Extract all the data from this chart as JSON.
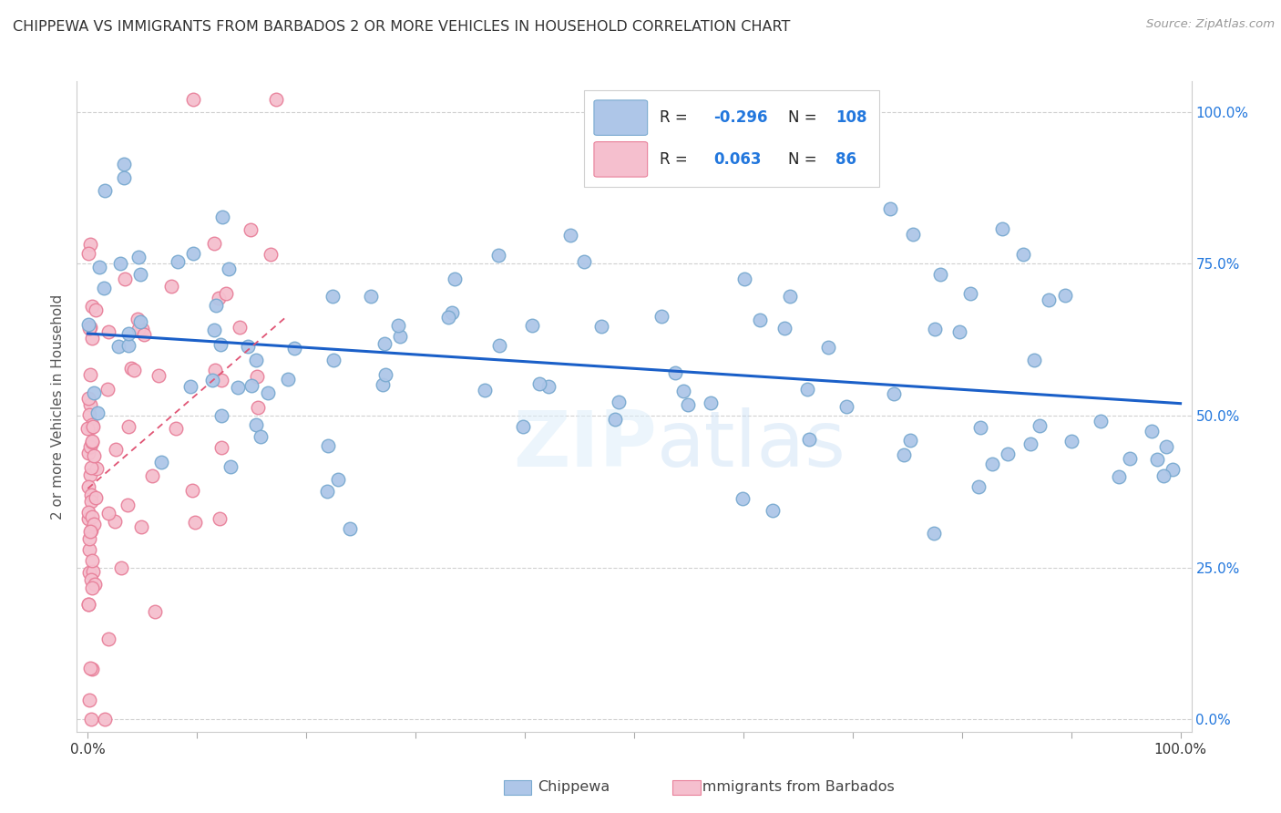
{
  "title": "CHIPPEWA VS IMMIGRANTS FROM BARBADOS 2 OR MORE VEHICLES IN HOUSEHOLD CORRELATION CHART",
  "source": "Source: ZipAtlas.com",
  "ylabel": "2 or more Vehicles in Household",
  "legend_r_blue": "-0.296",
  "legend_n_blue": "108",
  "legend_r_pink": "0.063",
  "legend_n_pink": "86",
  "watermark": "ZIPatlas",
  "blue_color": "#aec6e8",
  "blue_edge": "#7aaad0",
  "pink_color": "#f5bfce",
  "pink_edge": "#e8809a",
  "trend_blue": "#1a5fc8",
  "trend_pink": "#e05575",
  "ytick_vals": [
    0.0,
    0.25,
    0.5,
    0.75,
    1.0
  ],
  "ytick_labels": [
    "0.0%",
    "25.0%",
    "50.0%",
    "75.0%",
    "100.0%"
  ],
  "xtick_vals": [
    0.0,
    0.1,
    0.2,
    0.3,
    0.4,
    0.5,
    0.6,
    0.7,
    0.8,
    0.9,
    1.0
  ],
  "xtick_labels": [
    "0.0%",
    "",
    "",
    "",
    "",
    "",
    "",
    "",
    "",
    "",
    "100.0%"
  ],
  "blue_trend_x0": 0.0,
  "blue_trend_y0": 0.635,
  "blue_trend_x1": 1.0,
  "blue_trend_y1": 0.52,
  "pink_trend_x0": 0.0,
  "pink_trend_y0": 0.38,
  "pink_trend_x1": 0.18,
  "pink_trend_y1": 0.66
}
